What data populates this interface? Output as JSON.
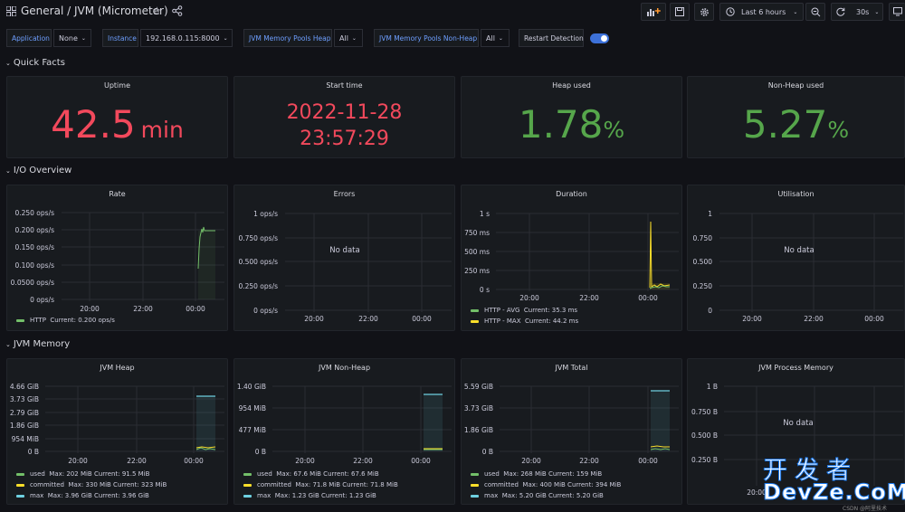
{
  "header": {
    "breadcrumb_folder": "General",
    "breadcrumb_sep": "/",
    "breadcrumb_title": "JVM (Micrometer)",
    "time_range": "Last 6 hours",
    "refresh": "30s"
  },
  "variables": {
    "application": {
      "label": "Application",
      "value": "None"
    },
    "instance": {
      "label": "Instance",
      "value": "192.168.0.115:8000"
    },
    "heap_pools": {
      "label": "JVM Memory Pools Heap",
      "value": "All"
    },
    "nonheap_pools": {
      "label": "JVM Memory Pools Non-Heap",
      "value": "All"
    },
    "restart": {
      "label": "Restart Detection",
      "enabled": true
    }
  },
  "rows": {
    "quick_facts": "Quick Facts",
    "io_overview": "I/O Overview",
    "jvm_memory": "JVM Memory"
  },
  "stats": {
    "uptime": {
      "title": "Uptime",
      "value": "42.5",
      "unit": "min",
      "color": "#f2495c"
    },
    "start_time": {
      "title": "Start time",
      "date": "2022-11-28",
      "time": "23:57:29",
      "color": "#f2495c"
    },
    "heap_used": {
      "title": "Heap used",
      "value": "1.78",
      "unit": "%",
      "color": "#56a64b"
    },
    "nonheap_used": {
      "title": "Non-Heap used",
      "value": "5.27",
      "unit": "%",
      "color": "#56a64b"
    }
  },
  "io": {
    "rate": {
      "title": "Rate",
      "yticks": [
        "0.250 ops/s",
        "0.200 ops/s",
        "0.150 ops/s",
        "0.100 ops/s",
        "0.0500 ops/s",
        "0 ops/s"
      ],
      "xticks": [
        "20:00",
        "22:00",
        "00:00"
      ],
      "legend": [
        {
          "name": "HTTP",
          "stats": "Current: 0.200 ops/s",
          "color": "#73bf69"
        }
      ]
    },
    "errors": {
      "title": "Errors",
      "yticks": [
        "1 ops/s",
        "0.750 ops/s",
        "0.500 ops/s",
        "0.250 ops/s",
        "0 ops/s"
      ],
      "xticks": [
        "20:00",
        "22:00",
        "00:00"
      ],
      "nodata": "No data"
    },
    "duration": {
      "title": "Duration",
      "yticks": [
        "1 s",
        "750 ms",
        "500 ms",
        "250 ms",
        "0 s"
      ],
      "xticks": [
        "20:00",
        "22:00",
        "00:00"
      ],
      "legend": [
        {
          "name": "HTTP - AVG",
          "stats": "Current: 35.3 ms",
          "color": "#73bf69"
        },
        {
          "name": "HTTP - MAX",
          "stats": "Current: 44.2 ms",
          "color": "#fade2a"
        }
      ]
    },
    "utilisation": {
      "title": "Utilisation",
      "yticks": [
        "1",
        "0.750",
        "0.500",
        "0.250",
        "0"
      ],
      "xticks": [
        "20:00",
        "22:00",
        "00:00"
      ],
      "nodata": "No data"
    }
  },
  "memory": {
    "heap": {
      "title": "JVM Heap",
      "yticks": [
        "4.66 GiB",
        "3.73 GiB",
        "2.79 GiB",
        "1.86 GiB",
        "954 MiB",
        "0 B"
      ],
      "xticks": [
        "20:00",
        "22:00",
        "00:00"
      ],
      "legend": [
        {
          "name": "used",
          "stats": "Max: 202 MiB  Current: 91.5 MiB",
          "color": "#73bf69"
        },
        {
          "name": "committed",
          "stats": "Max: 330 MiB  Current: 323 MiB",
          "color": "#fade2a"
        },
        {
          "name": "max",
          "stats": "Max: 3.96 GiB  Current: 3.96 GiB",
          "color": "#6ed0e0"
        }
      ]
    },
    "nonheap": {
      "title": "JVM Non-Heap",
      "yticks": [
        "1.40 GiB",
        "954 MiB",
        "477 MiB",
        "0 B"
      ],
      "xticks": [
        "20:00",
        "22:00",
        "00:00"
      ],
      "legend": [
        {
          "name": "used",
          "stats": "Max: 67.6 MiB  Current: 67.6 MiB",
          "color": "#73bf69"
        },
        {
          "name": "committed",
          "stats": "Max: 71.8 MiB  Current: 71.8 MiB",
          "color": "#fade2a"
        },
        {
          "name": "max",
          "stats": "Max: 1.23 GiB  Current: 1.23 GiB",
          "color": "#6ed0e0"
        }
      ]
    },
    "total": {
      "title": "JVM Total",
      "yticks": [
        "5.59 GiB",
        "3.73 GiB",
        "1.86 GiB",
        "0 B"
      ],
      "xticks": [
        "20:00",
        "22:00",
        "00:00"
      ],
      "legend": [
        {
          "name": "used",
          "stats": "Max: 268 MiB  Current: 159 MiB",
          "color": "#73bf69"
        },
        {
          "name": "committed",
          "stats": "Max: 400 MiB  Current: 394 MiB",
          "color": "#fade2a"
        },
        {
          "name": "max",
          "stats": "Max: 5.20 GiB  Current: 5.20 GiB",
          "color": "#6ed0e0"
        }
      ]
    },
    "process": {
      "title": "JVM Process Memory",
      "yticks": [
        "1 B",
        "0.750 B",
        "0.500 B",
        "0.250 B"
      ],
      "xticks": [
        "20:00"
      ],
      "nodata": "No data"
    }
  },
  "watermark": {
    "cn": "开发者",
    "en": "DevZe.CoM",
    "csdn": "CSDN @阿里技术"
  }
}
